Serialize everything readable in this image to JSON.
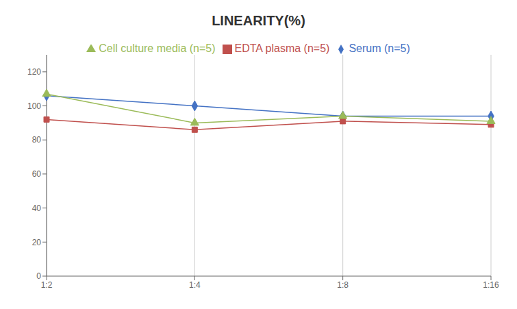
{
  "chart_data": {
    "type": "line",
    "title": "LINEARITY(%)",
    "categories": [
      "1:2",
      "1:4",
      "1:8",
      "1:16"
    ],
    "series": [
      {
        "name": "Serum (n=5)",
        "values": [
          106,
          100,
          94,
          94
        ],
        "color": "#4472C4",
        "marker": "diamond"
      },
      {
        "name": "EDTA plasma (n=5)",
        "values": [
          92,
          86,
          91,
          89
        ],
        "color": "#C0504D",
        "marker": "square"
      },
      {
        "name": "Cell culture media (n=5)",
        "values": [
          107,
          90,
          94,
          91
        ],
        "color": "#9BBB59",
        "marker": "triangle"
      }
    ],
    "ylim": [
      0,
      130
    ],
    "yticks": [
      0,
      20,
      40,
      60,
      80,
      100,
      120
    ],
    "grid": "x",
    "legend": "top"
  }
}
